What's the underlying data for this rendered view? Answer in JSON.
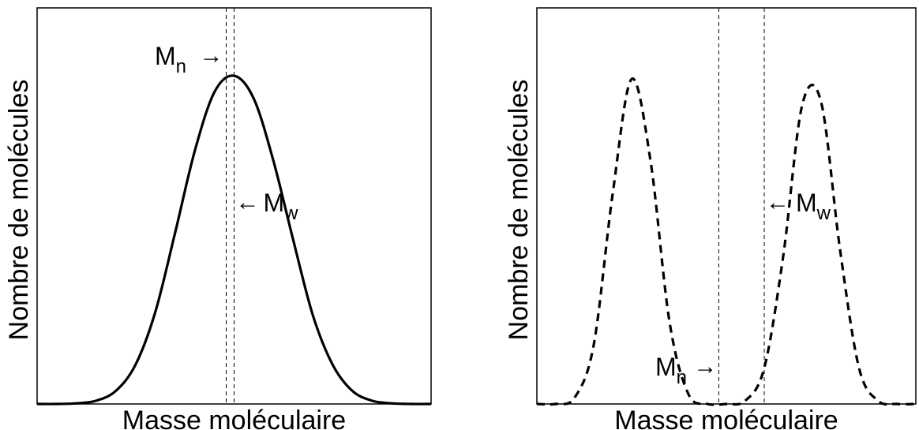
{
  "chart_data": [
    {
      "type": "line",
      "title": "",
      "xlabel": "Masse moléculaire",
      "ylabel": "Nombre de molécules",
      "xlim": [
        0,
        1
      ],
      "ylim": [
        0,
        1
      ],
      "line_style": "solid",
      "series": [
        {
          "x": [
            0.0,
            0.05,
            0.1,
            0.15,
            0.2,
            0.25,
            0.3,
            0.35,
            0.4,
            0.45,
            0.5,
            0.55,
            0.6,
            0.65,
            0.7,
            0.75,
            0.8,
            0.85,
            0.9,
            0.95,
            1.0
          ],
          "y": [
            0.0,
            0.0,
            0.002,
            0.01,
            0.04,
            0.12,
            0.28,
            0.52,
            0.77,
            0.95,
            1.0,
            0.93,
            0.74,
            0.5,
            0.27,
            0.12,
            0.04,
            0.01,
            0.002,
            0.0,
            0.0
          ]
        }
      ],
      "markers": {
        "mn": {
          "x": 0.48,
          "label": "M",
          "sub": "n",
          "arrow": "→"
        },
        "mw": {
          "x": 0.5,
          "label": "M",
          "sub": "w",
          "arrow": "←"
        }
      }
    },
    {
      "type": "line",
      "title": "",
      "xlabel": "Masse moléculaire",
      "ylabel": "Nombre de molécules",
      "xlim": [
        0,
        1
      ],
      "ylim": [
        0,
        1
      ],
      "line_style": "dashed",
      "series": [
        {
          "x": [
            0.0,
            0.05,
            0.1,
            0.15,
            0.2,
            0.25,
            0.3,
            0.35,
            0.4,
            0.45,
            0.5,
            0.55,
            0.6,
            0.65,
            0.7,
            0.75,
            0.8,
            0.85,
            0.9,
            0.95,
            1.0
          ],
          "y": [
            0.0,
            0.0,
            0.02,
            0.18,
            0.64,
            0.99,
            0.74,
            0.25,
            0.03,
            0.0,
            0.0,
            0.01,
            0.11,
            0.45,
            0.91,
            0.92,
            0.47,
            0.11,
            0.01,
            0.0,
            0.0
          ]
        }
      ],
      "markers": {
        "mn": {
          "x": 0.48,
          "label": "M",
          "sub": "n",
          "arrow": "→"
        },
        "mw": {
          "x": 0.6,
          "label": "M",
          "sub": "w",
          "arrow": "←"
        }
      }
    }
  ]
}
